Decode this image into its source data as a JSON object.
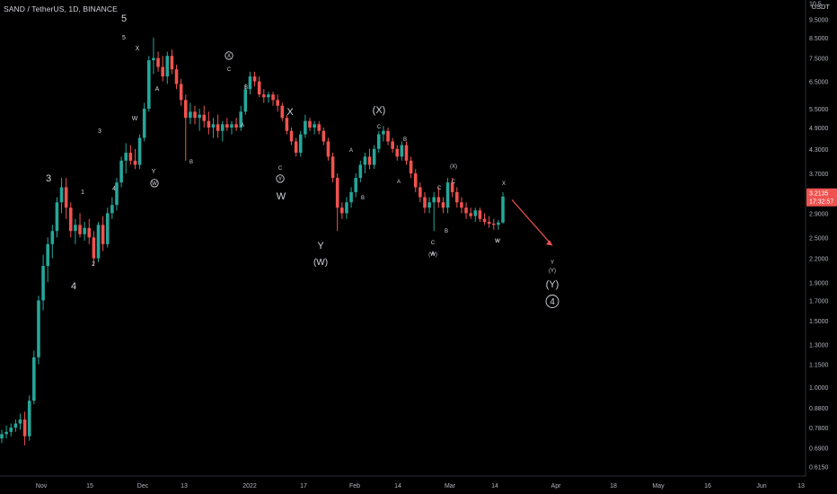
{
  "header": {
    "symbol_line": "SAND / TetherUS, 1D, BINANCE"
  },
  "price_axis": {
    "currency": "USDT"
  },
  "colors": {
    "up": "#26a69a",
    "down": "#ef5350",
    "background": "#000000",
    "arrow": "#ef5350",
    "label": "#d1d4dc"
  },
  "chart_data": {
    "type": "candlestick",
    "scale": "log",
    "x_axis_labels": [
      "Nov",
      "15",
      "Dec",
      "13",
      "2022",
      "17",
      "Feb",
      "14",
      "Mar",
      "14",
      "Apr",
      "18",
      "May",
      "16",
      "Jun",
      "13"
    ],
    "y_axis_labels": [
      "0.6150",
      "0.6900",
      "0.7800",
      "0.8800",
      "1.0000",
      "1.1500",
      "1.3000",
      "1.5000",
      "1.7000",
      "1.9000",
      "2.2000",
      "2.5000",
      "2.9000",
      "3.3000",
      "3.7000",
      "4.3000",
      "4.9000",
      "5.5000",
      "6.5000",
      "7.5000",
      "8.5000",
      "9.5000",
      "10.5"
    ],
    "ylim": [
      0.58,
      10.7
    ],
    "last_price": {
      "value": "3.2135",
      "countdown": "17:32:57"
    },
    "ohlc": [
      [
        0.73,
        0.77,
        0.71,
        0.75
      ],
      [
        0.75,
        0.79,
        0.73,
        0.76
      ],
      [
        0.76,
        0.8,
        0.74,
        0.78
      ],
      [
        0.78,
        0.82,
        0.76,
        0.8
      ],
      [
        0.8,
        0.85,
        0.77,
        0.82
      ],
      [
        0.82,
        0.86,
        0.7,
        0.74
      ],
      [
        0.74,
        0.95,
        0.72,
        0.92
      ],
      [
        0.92,
        1.25,
        0.9,
        1.2
      ],
      [
        1.2,
        1.75,
        1.15,
        1.7
      ],
      [
        1.7,
        2.25,
        1.6,
        2.1
      ],
      [
        2.1,
        2.5,
        1.9,
        2.4
      ],
      [
        2.4,
        2.7,
        2.2,
        2.6
      ],
      [
        2.6,
        3.2,
        2.5,
        3.1
      ],
      [
        3.1,
        3.6,
        2.9,
        3.4
      ],
      [
        3.4,
        3.6,
        2.8,
        3.0
      ],
      [
        3.0,
        3.1,
        2.5,
        2.6
      ],
      [
        2.6,
        2.8,
        2.4,
        2.7
      ],
      [
        2.7,
        2.9,
        2.5,
        2.55
      ],
      [
        2.55,
        2.75,
        2.45,
        2.65
      ],
      [
        2.65,
        2.8,
        2.4,
        2.5
      ],
      [
        2.5,
        2.6,
        2.1,
        2.2
      ],
      [
        2.2,
        2.75,
        2.15,
        2.7
      ],
      [
        2.7,
        2.85,
        2.3,
        2.4
      ],
      [
        2.4,
        3.0,
        2.35,
        2.9
      ],
      [
        2.9,
        3.2,
        2.8,
        3.05
      ],
      [
        3.05,
        3.6,
        2.95,
        3.5
      ],
      [
        3.5,
        4.1,
        3.4,
        4.0
      ],
      [
        4.0,
        4.45,
        3.7,
        4.2
      ],
      [
        4.2,
        4.4,
        3.9,
        4.0
      ],
      [
        4.0,
        4.3,
        3.8,
        3.9
      ],
      [
        3.9,
        4.7,
        3.8,
        4.6
      ],
      [
        4.6,
        5.7,
        4.5,
        5.5
      ],
      [
        5.5,
        7.6,
        5.4,
        7.4
      ],
      [
        7.4,
        8.5,
        6.8,
        7.5
      ],
      [
        7.5,
        7.8,
        6.9,
        7.1
      ],
      [
        7.1,
        7.6,
        6.5,
        6.7
      ],
      [
        6.7,
        7.8,
        6.4,
        7.6
      ],
      [
        7.6,
        7.9,
        6.8,
        7.0
      ],
      [
        7.0,
        7.2,
        6.2,
        6.4
      ],
      [
        6.4,
        6.6,
        5.6,
        5.8
      ],
      [
        5.8,
        6.0,
        4.0,
        5.2
      ],
      [
        5.2,
        5.7,
        5.0,
        5.4
      ],
      [
        5.4,
        5.6,
        5.0,
        5.2
      ],
      [
        5.2,
        5.5,
        4.8,
        5.3
      ],
      [
        5.3,
        5.6,
        4.9,
        5.1
      ],
      [
        5.1,
        5.4,
        4.7,
        4.9
      ],
      [
        4.9,
        5.2,
        4.6,
        5.0
      ],
      [
        5.0,
        5.3,
        4.6,
        4.8
      ],
      [
        4.8,
        5.1,
        4.5,
        5.0
      ],
      [
        5.0,
        5.2,
        4.8,
        4.9
      ],
      [
        4.9,
        5.1,
        4.7,
        5.0
      ],
      [
        5.0,
        5.2,
        4.8,
        4.9
      ],
      [
        4.9,
        5.6,
        4.8,
        5.4
      ],
      [
        5.4,
        6.4,
        5.3,
        6.2
      ],
      [
        6.2,
        6.9,
        6.0,
        6.7
      ],
      [
        6.7,
        6.9,
        6.3,
        6.5
      ],
      [
        6.5,
        6.7,
        5.9,
        6.0
      ],
      [
        6.0,
        6.2,
        5.7,
        5.9
      ],
      [
        5.9,
        6.1,
        5.7,
        6.0
      ],
      [
        6.0,
        6.1,
        5.6,
        5.8
      ],
      [
        5.8,
        6.0,
        5.4,
        5.6
      ],
      [
        5.6,
        5.7,
        5.1,
        5.2
      ],
      [
        5.2,
        5.3,
        4.7,
        4.8
      ],
      [
        4.8,
        4.9,
        4.4,
        4.5
      ],
      [
        4.5,
        4.6,
        4.1,
        4.2
      ],
      [
        4.2,
        4.8,
        4.1,
        4.7
      ],
      [
        4.7,
        5.3,
        4.6,
        5.1
      ],
      [
        5.1,
        5.2,
        4.8,
        4.9
      ],
      [
        4.9,
        5.1,
        4.7,
        5.0
      ],
      [
        5.0,
        5.1,
        4.7,
        4.8
      ],
      [
        4.8,
        4.9,
        4.4,
        4.5
      ],
      [
        4.5,
        4.6,
        4.0,
        4.1
      ],
      [
        4.1,
        4.2,
        3.5,
        3.6
      ],
      [
        3.6,
        3.7,
        2.6,
        3.0
      ],
      [
        3.0,
        3.1,
        2.8,
        2.9
      ],
      [
        2.9,
        3.2,
        2.8,
        3.1
      ],
      [
        3.1,
        3.4,
        3.0,
        3.3
      ],
      [
        3.3,
        3.7,
        3.2,
        3.6
      ],
      [
        3.6,
        4.0,
        3.5,
        3.9
      ],
      [
        3.9,
        4.2,
        3.7,
        4.1
      ],
      [
        4.1,
        4.3,
        3.8,
        3.9
      ],
      [
        3.9,
        4.4,
        3.8,
        4.3
      ],
      [
        4.3,
        4.8,
        4.2,
        4.7
      ],
      [
        4.7,
        4.95,
        4.5,
        4.8
      ],
      [
        4.8,
        4.9,
        4.4,
        4.5
      ],
      [
        4.5,
        4.6,
        4.2,
        4.3
      ],
      [
        4.3,
        4.4,
        4.0,
        4.1
      ],
      [
        4.1,
        4.5,
        4.0,
        4.4
      ],
      [
        4.4,
        4.5,
        3.9,
        4.0
      ],
      [
        4.0,
        4.1,
        3.6,
        3.7
      ],
      [
        3.7,
        3.8,
        3.3,
        3.4
      ],
      [
        3.4,
        3.5,
        3.1,
        3.2
      ],
      [
        3.2,
        3.3,
        2.9,
        3.0
      ],
      [
        3.0,
        3.2,
        2.9,
        3.1
      ],
      [
        3.1,
        3.3,
        2.6,
        3.2
      ],
      [
        3.2,
        3.4,
        3.0,
        3.1
      ],
      [
        3.1,
        3.2,
        2.9,
        3.0
      ],
      [
        3.0,
        3.6,
        2.9,
        3.5
      ],
      [
        3.5,
        3.6,
        3.2,
        3.3
      ],
      [
        3.3,
        3.4,
        3.0,
        3.1
      ],
      [
        3.1,
        3.2,
        2.9,
        3.0
      ],
      [
        3.0,
        3.1,
        2.8,
        2.9
      ],
      [
        2.9,
        3.0,
        2.8,
        2.85
      ],
      [
        2.85,
        3.0,
        2.75,
        2.95
      ],
      [
        2.95,
        3.0,
        2.75,
        2.8
      ],
      [
        2.8,
        2.9,
        2.7,
        2.75
      ],
      [
        2.75,
        2.85,
        2.65,
        2.72
      ],
      [
        2.72,
        2.8,
        2.62,
        2.7
      ],
      [
        2.7,
        2.78,
        2.62,
        2.74
      ],
      [
        2.74,
        3.3,
        2.72,
        3.21
      ]
    ],
    "annotations": [
      {
        "text": "3"
      },
      {
        "text": "4"
      },
      {
        "text": "5"
      },
      {
        "text": "5"
      },
      {
        "text": "X"
      },
      {
        "text": "W"
      },
      {
        "text": "A"
      },
      {
        "text": "Y"
      },
      {
        "text": "W"
      },
      {
        "text": "B"
      },
      {
        "text": "1"
      },
      {
        "text": "2"
      },
      {
        "text": "3"
      },
      {
        "text": "4"
      },
      {
        "text": "X"
      },
      {
        "text": "C"
      },
      {
        "text": "B"
      },
      {
        "text": "A"
      },
      {
        "text": "C"
      },
      {
        "text": "Y"
      },
      {
        "text": "W"
      },
      {
        "text": "X"
      },
      {
        "text": "Y"
      },
      {
        "text": "(W)"
      },
      {
        "text": "(X)"
      },
      {
        "text": "C"
      },
      {
        "text": "B"
      },
      {
        "text": "A"
      },
      {
        "text": "A"
      },
      {
        "text": "B"
      },
      {
        "text": "C"
      },
      {
        "text": "C"
      },
      {
        "text": "(W)"
      },
      {
        "text": "B"
      },
      {
        "text": "(X)"
      },
      {
        "text": "C"
      },
      {
        "text": "A"
      },
      {
        "text": "X"
      },
      {
        "text": "W"
      },
      {
        "text": "Y"
      },
      {
        "text": "(Y)"
      },
      {
        "text": "(Y)"
      },
      {
        "text": "4"
      },
      {
        "text": "W"
      }
    ]
  }
}
